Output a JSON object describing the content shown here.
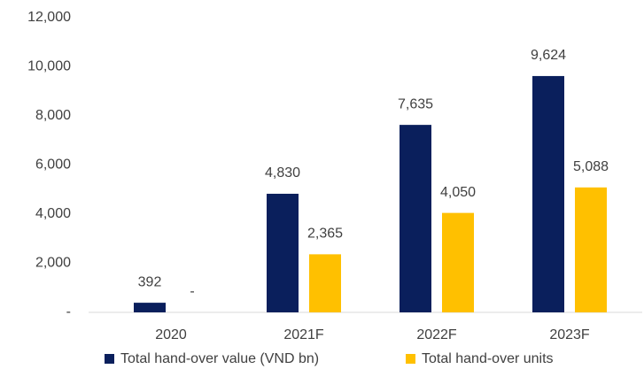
{
  "chart_data": {
    "type": "bar",
    "categories": [
      "2020",
      "2021F",
      "2022F",
      "2023F"
    ],
    "series": [
      {
        "name": "Total hand-over value (VND bn)",
        "color": "#0a1f5c",
        "values": [
          392,
          4830,
          7635,
          9624
        ],
        "value_labels": [
          "392",
          "4,830",
          "7,635",
          "9,624"
        ]
      },
      {
        "name": "Total hand-over units",
        "color": "#ffc000",
        "values": [
          0,
          2365,
          4050,
          5088
        ],
        "value_labels": [
          "-",
          "2,365",
          "4,050",
          "5,088"
        ]
      }
    ],
    "ylim": [
      0,
      12000
    ],
    "yticks": [
      {
        "value": 0,
        "label": "-"
      },
      {
        "value": 2000,
        "label": "2,000"
      },
      {
        "value": 4000,
        "label": "4,000"
      },
      {
        "value": 6000,
        "label": "6,000"
      },
      {
        "value": 8000,
        "label": "8,000"
      },
      {
        "value": 10000,
        "label": "10,000"
      },
      {
        "value": 12000,
        "label": "12,000"
      }
    ],
    "grid": false
  }
}
